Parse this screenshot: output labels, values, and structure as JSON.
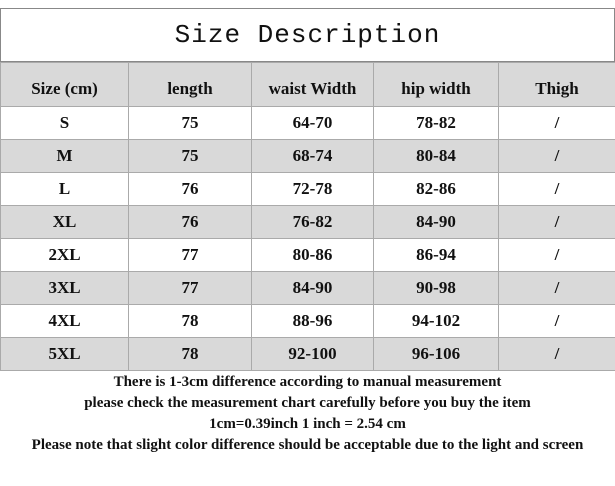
{
  "header": {
    "title": "Size Description"
  },
  "table": {
    "columns": [
      "Size (cm)",
      "length",
      "waist Width",
      "hip width",
      "Thigh"
    ],
    "rows": [
      [
        "S",
        "75",
        "64-70",
        "78-82",
        "/"
      ],
      [
        "M",
        "75",
        "68-74",
        "80-84",
        "/"
      ],
      [
        "L",
        "76",
        "72-78",
        "82-86",
        "/"
      ],
      [
        "XL",
        "76",
        "76-82",
        "84-90",
        "/"
      ],
      [
        "2XL",
        "77",
        "80-86",
        "86-94",
        "/"
      ],
      [
        "3XL",
        "77",
        "84-90",
        "90-98",
        "/"
      ],
      [
        "4XL",
        "78",
        "88-96",
        "94-102",
        "/"
      ],
      [
        "5XL",
        "78",
        "92-100",
        "96-106",
        "/"
      ]
    ]
  },
  "notes": [
    "There is 1-3cm difference according to manual measurement",
    "please check the measurement chart carefully before you buy the item",
    "1cm=0.39inch  1 inch = 2.54 cm",
    "Please note that slight color difference should be acceptable due to the light and screen"
  ]
}
